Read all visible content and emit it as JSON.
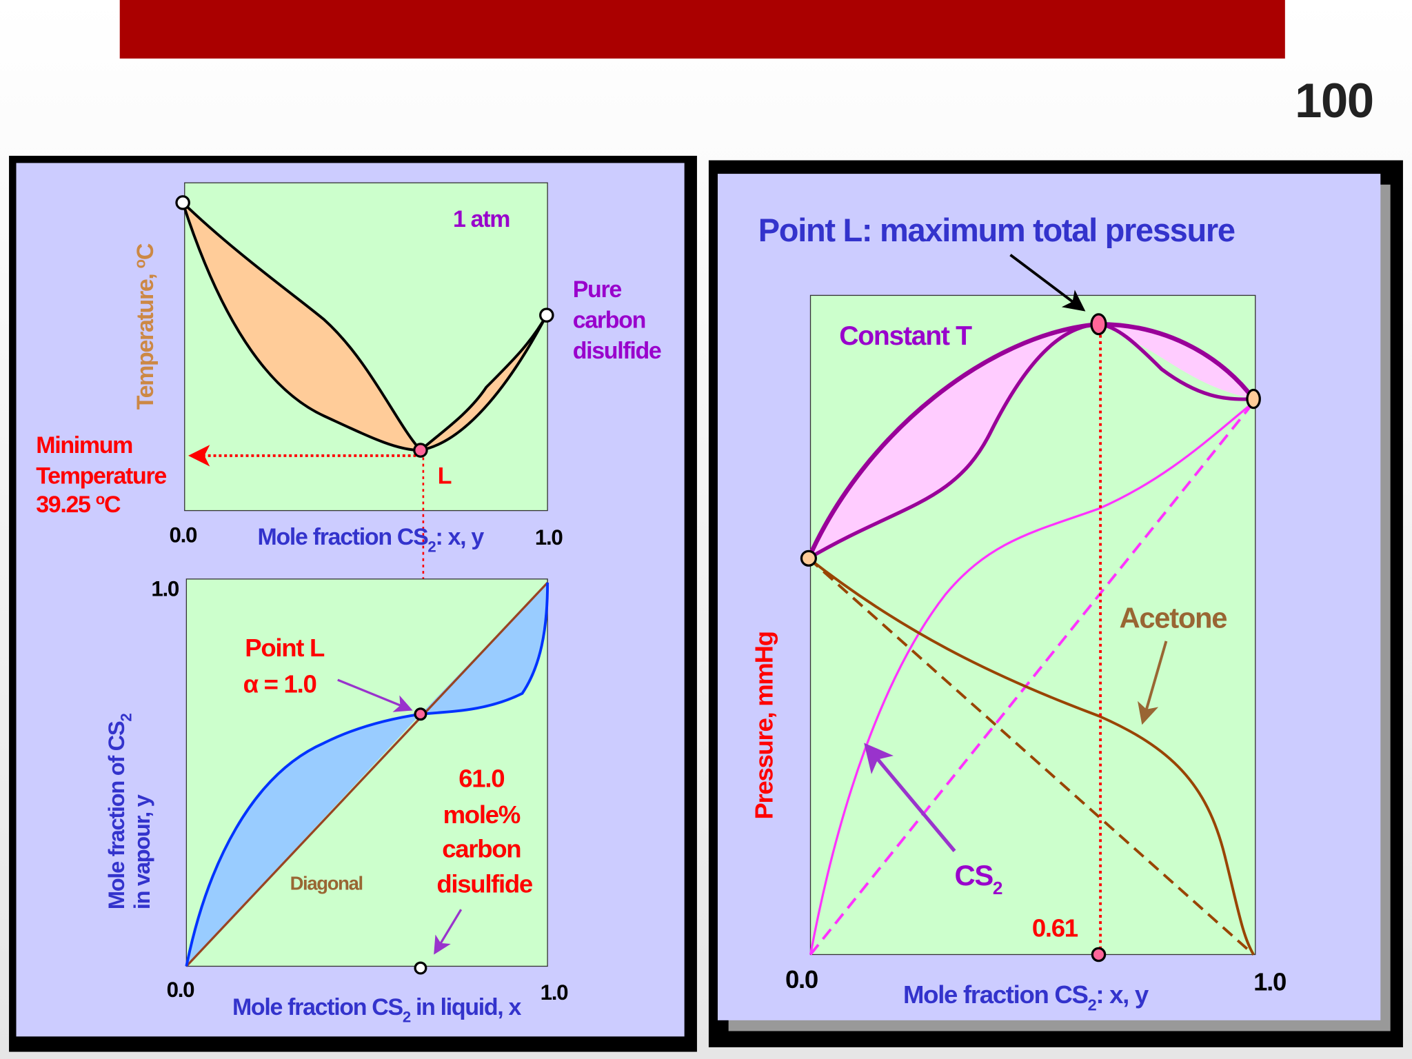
{
  "slide_number": "100",
  "top_left": {
    "y_axis": [
      "Temperature, ",
      "o",
      "C"
    ],
    "pressure_note": "1 atm",
    "pure_label": [
      "Pure",
      "carbon",
      "disulfide"
    ],
    "minimum_label": [
      "Minimum",
      "Temperature",
      "39.25 ",
      "o",
      "C"
    ],
    "point": "L",
    "x_start": "0.0",
    "x_end": "1.0",
    "x_axis": [
      "Mole fraction CS",
      "2",
      ": x, y"
    ]
  },
  "bottom_left": {
    "y_top": "1.0",
    "x_start": "0.0",
    "x_end": "1.0",
    "point_label": [
      "Point L",
      "α = 1.0"
    ],
    "composition": [
      "61.0",
      "mole%",
      "carbon",
      "disulfide"
    ],
    "diagonal": "Diagonal",
    "y_axis": [
      "Mole fraction of CS",
      "2",
      "in vapour, y"
    ],
    "x_axis": [
      "Mole fraction CS",
      "2",
      " in liquid, x"
    ]
  },
  "right": {
    "title": "Point L: maximum total pressure",
    "condition": "Constant T",
    "acetone": "Acetone",
    "cs2": [
      "CS",
      "2"
    ],
    "composition": "0.61",
    "x_start": "0.0",
    "x_end": "1.0",
    "y_axis": "Pressure, mmHg",
    "x_axis": [
      "Mole fraction CS",
      "2",
      ": x, y"
    ]
  }
}
